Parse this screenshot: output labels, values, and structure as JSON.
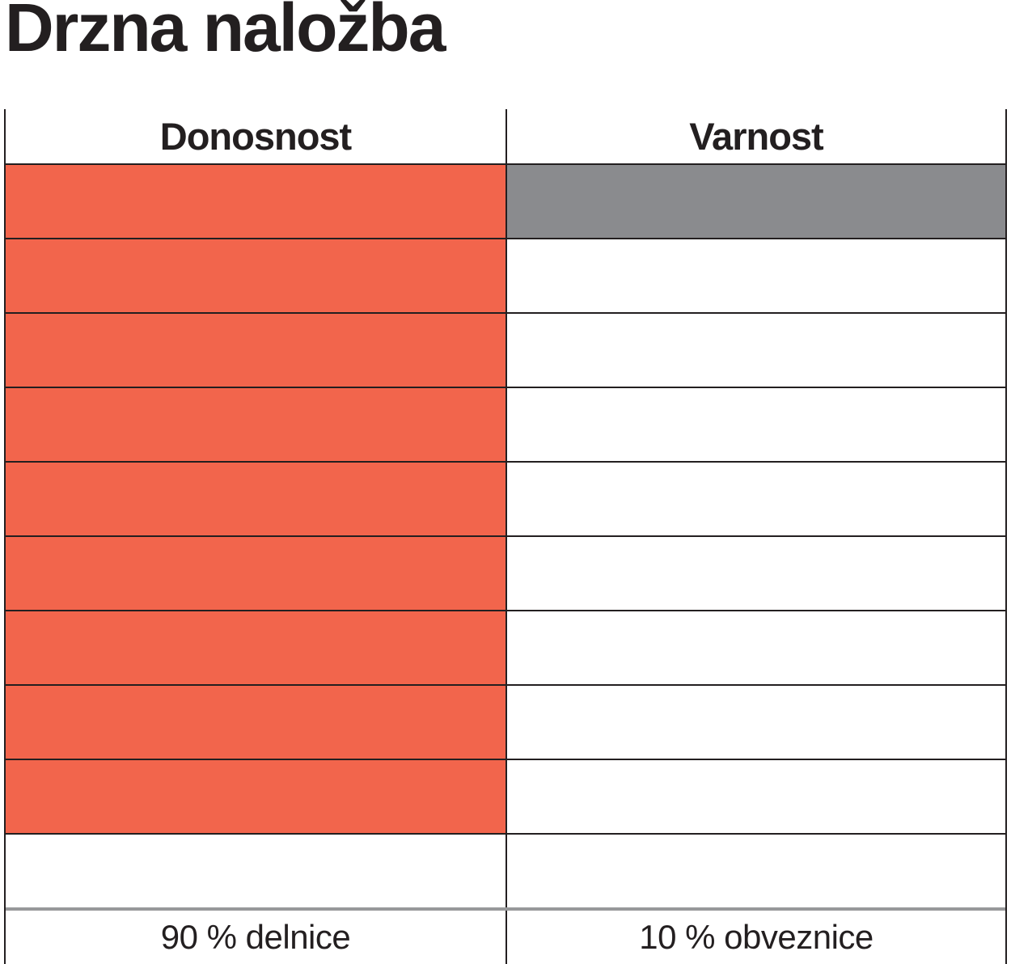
{
  "title": "Drzna naložba",
  "table": {
    "columns": [
      {
        "id": "donosnost",
        "header": "Donosnost",
        "footer": "90 % delnice"
      },
      {
        "id": "varnost",
        "header": "Varnost",
        "footer": "10 % obveznice"
      }
    ]
  },
  "colors": {
    "orange": "#F2654C",
    "gray": "#8A8B8E",
    "line": "#231F20",
    "separator": "#97989A"
  },
  "chart_data": {
    "type": "table",
    "title": "Drzna naložba",
    "categories": [
      "Donosnost",
      "Varnost"
    ],
    "total_rows": 10,
    "series": [
      {
        "name": "Donosnost",
        "filled_cells": 9,
        "fill_color": "#F2654C",
        "fill_from": "top",
        "label": "90 % delnice",
        "value_percent": 90
      },
      {
        "name": "Varnost",
        "filled_cells": 1,
        "fill_color": "#8A8B8E",
        "fill_from": "top",
        "label": "10 % obveznice",
        "value_percent": 10
      }
    ],
    "legend_position": "none",
    "grid": "on"
  }
}
